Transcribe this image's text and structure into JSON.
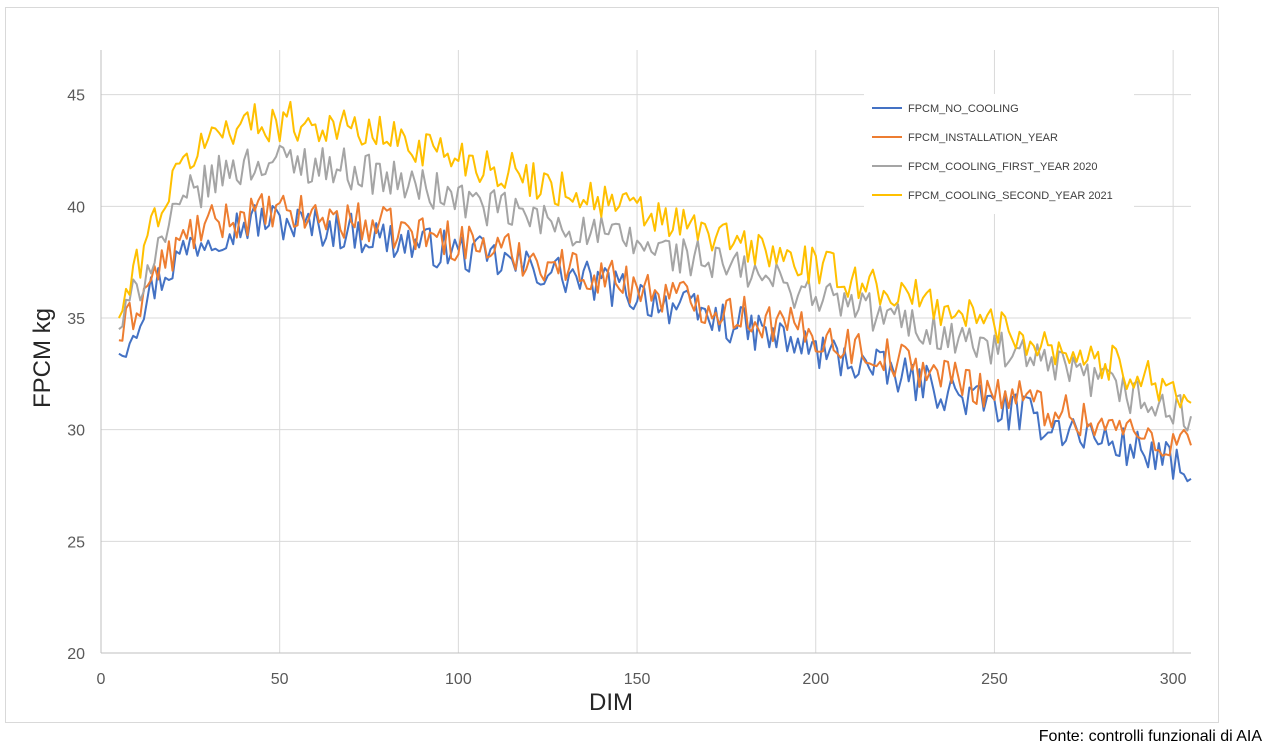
{
  "chart_data": {
    "type": "line",
    "xlabel": "DIM",
    "ylabel": "FPCM kg",
    "xlim": [
      0,
      305
    ],
    "ylim": [
      20,
      47
    ],
    "x_ticks": [
      0,
      50,
      100,
      150,
      200,
      250,
      300
    ],
    "y_ticks": [
      20,
      25,
      30,
      35,
      40,
      45
    ],
    "grid": true,
    "legend_position": "top-right",
    "x": [
      5,
      15,
      25,
      35,
      45,
      55,
      65,
      75,
      85,
      95,
      105,
      115,
      125,
      135,
      145,
      155,
      165,
      175,
      185,
      195,
      205,
      215,
      225,
      235,
      245,
      255,
      265,
      275,
      285,
      295,
      305
    ],
    "series": [
      {
        "name": "FPCM_NO_COOLING",
        "color": "#4472c4",
        "values": [
          33.4,
          36.5,
          38.3,
          39.0,
          39.4,
          39.2,
          39.0,
          38.7,
          38.4,
          38.1,
          37.8,
          37.4,
          37.1,
          36.7,
          36.3,
          35.8,
          35.3,
          34.8,
          34.3,
          33.8,
          33.3,
          32.8,
          32.3,
          31.8,
          31.3,
          30.8,
          30.3,
          29.8,
          29.3,
          28.9,
          27.8
        ]
      },
      {
        "name": "FPCM_INSTALLATION_YEAR",
        "color": "#ed7d31",
        "values": [
          34.0,
          37.0,
          38.8,
          39.4,
          39.7,
          39.6,
          39.5,
          39.2,
          38.9,
          38.6,
          38.3,
          37.9,
          37.5,
          37.1,
          36.7,
          36.2,
          35.8,
          35.4,
          34.9,
          34.5,
          34.0,
          33.5,
          33.0,
          32.5,
          32.0,
          31.5,
          31.0,
          30.5,
          30.0,
          29.6,
          29.3
        ]
      },
      {
        "name": "FPCM_COOLING_FIRST_YEAR 2020",
        "color": "#a5a5a5",
        "values": [
          34.5,
          38.0,
          40.5,
          41.6,
          42.0,
          42.0,
          41.8,
          41.5,
          41.0,
          40.6,
          40.1,
          39.7,
          39.3,
          38.9,
          38.5,
          38.1,
          37.7,
          37.3,
          36.8,
          36.3,
          35.8,
          35.3,
          34.8,
          34.3,
          33.8,
          33.3,
          32.8,
          32.3,
          31.8,
          31.0,
          30.6
        ]
      },
      {
        "name": "FPCM_COOLING_SECOND_YEAR 2021",
        "color": "#ffc000",
        "values": [
          35.0,
          39.5,
          42.3,
          43.6,
          43.8,
          43.8,
          43.6,
          43.3,
          42.9,
          42.5,
          42.0,
          41.5,
          41.0,
          40.5,
          40.0,
          39.5,
          39.0,
          38.5,
          38.0,
          37.5,
          37.0,
          36.5,
          36.0,
          35.5,
          35.0,
          34.4,
          33.8,
          33.3,
          32.8,
          32.3,
          31.2
        ]
      }
    ]
  },
  "source_note": "Fonte: controlli funzionali di AIA"
}
